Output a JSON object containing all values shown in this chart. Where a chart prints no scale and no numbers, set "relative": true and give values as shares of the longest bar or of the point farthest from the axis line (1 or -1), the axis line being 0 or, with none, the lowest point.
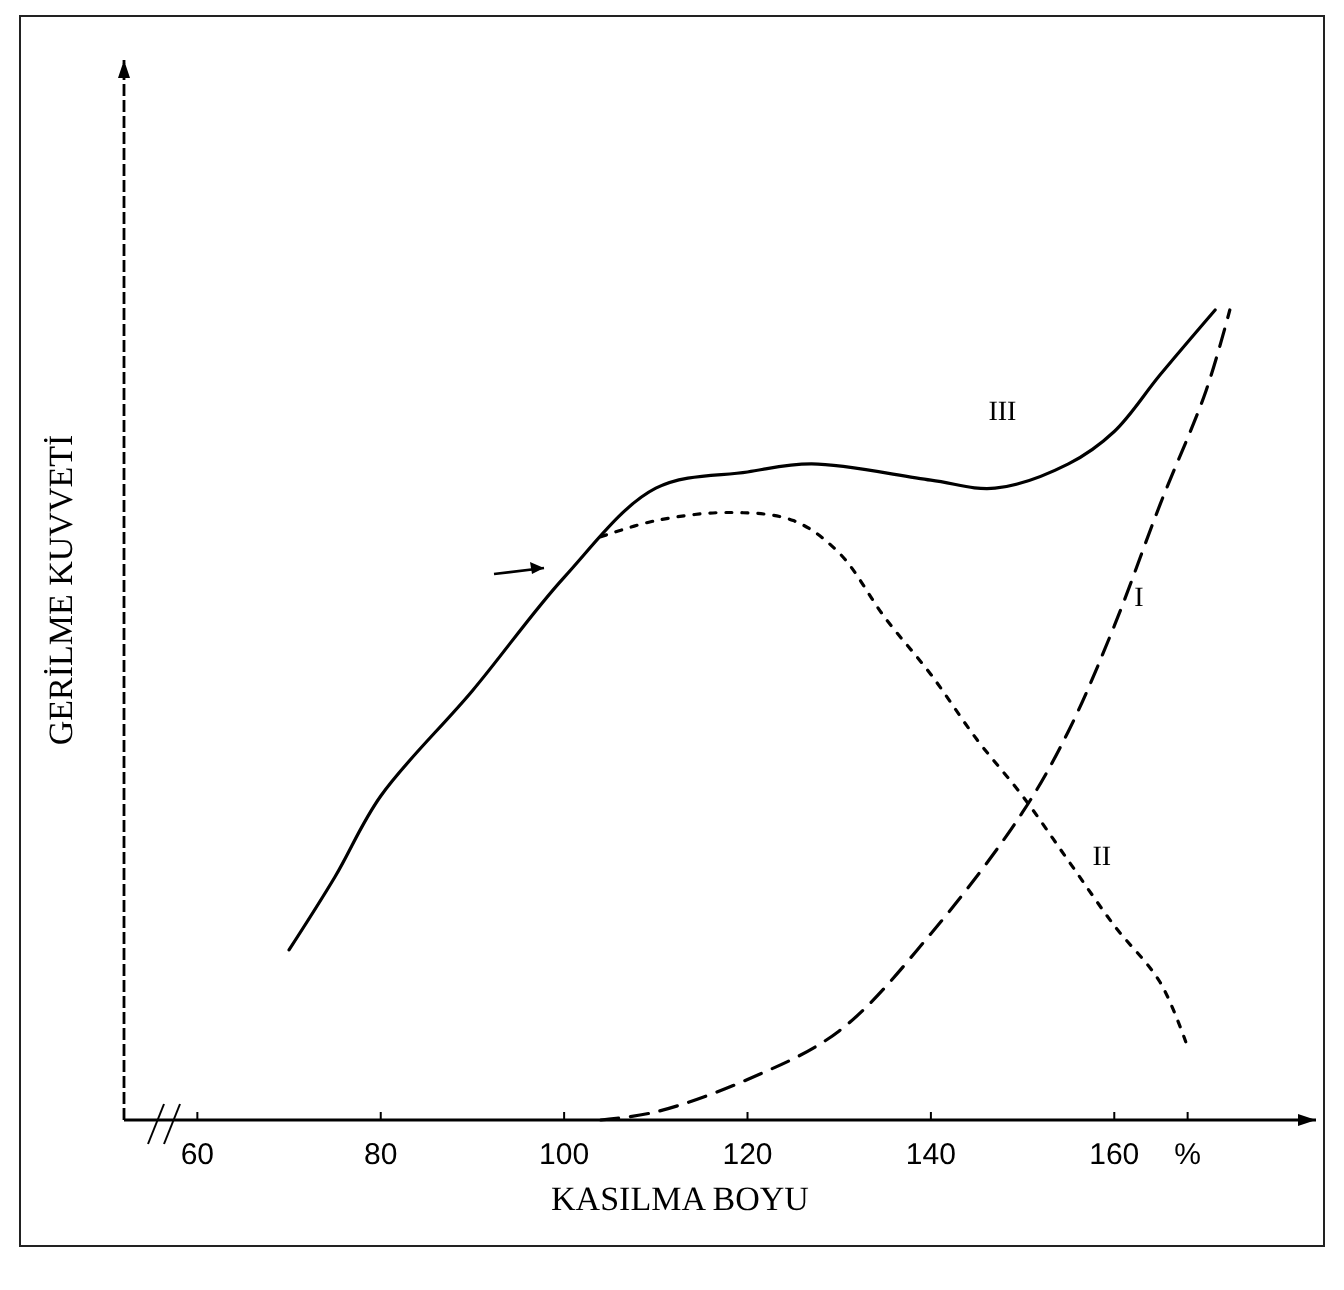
{
  "chart_data": {
    "type": "line",
    "relative": true,
    "xlabel": "KASILMA BOYU",
    "ylabel": "GERİLME KUVVETİ",
    "xlim": [
      52,
      182
    ],
    "xticks": [
      60,
      80,
      100,
      120,
      140,
      160,
      {
        "value": 168,
        "label": "%"
      }
    ],
    "series": [
      {
        "name": "I",
        "color": "#000000",
        "line_style": "dashed",
        "x": [
          104,
          110,
          120,
          130,
          140,
          150,
          155,
          160,
          165,
          170,
          172.6
        ],
        "values": [
          0,
          0.01,
          0.05,
          0.11,
          0.23,
          0.38,
          0.48,
          0.61,
          0.76,
          0.9,
          1.0
        ]
      },
      {
        "name": "II",
        "color": "#000000",
        "line_style": "dotted",
        "x": [
          104,
          110,
          118,
          125,
          130,
          135,
          140,
          145,
          150,
          155,
          160,
          165,
          168
        ],
        "values": [
          0.72,
          0.74,
          0.75,
          0.74,
          0.7,
          0.62,
          0.55,
          0.47,
          0.4,
          0.32,
          0.24,
          0.17,
          0.09
        ]
      },
      {
        "name": "III",
        "color": "#000000",
        "line_style": "solid",
        "x": [
          70,
          75,
          80,
          90,
          100,
          110,
          120,
          127,
          140,
          147,
          155,
          160,
          165,
          171
        ],
        "values": [
          0.21,
          0.3,
          0.4,
          0.53,
          0.67,
          0.78,
          0.8,
          0.81,
          0.79,
          0.78,
          0.81,
          0.85,
          0.92,
          1.0
        ]
      }
    ]
  }
}
